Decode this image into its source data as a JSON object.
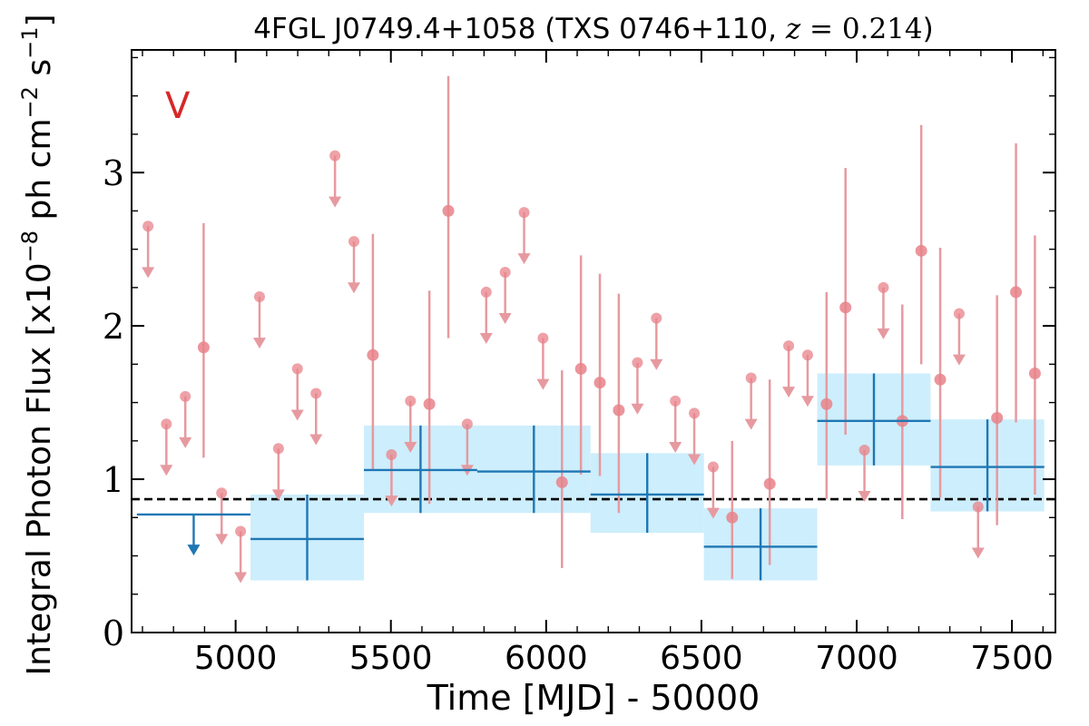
{
  "chart_data": {
    "type": "scatter",
    "title": "4FGL J0749.4+1058 (TXS 0746+110, z = 0.214)",
    "xlabel": "Time [MJD] - 50000",
    "ylabel": "Integral Photon Flux [x10^-8 ph cm^-2 s^-1]",
    "panel_label": "V",
    "xlim": [
      4665,
      7640
    ],
    "ylim": [
      0,
      3.8
    ],
    "x_ticks": [
      5000,
      5500,
      6000,
      6500,
      7000,
      7500
    ],
    "y_ticks": [
      0,
      1,
      2,
      3
    ],
    "mean_flux": 0.87,
    "monthly_upper_limits": [
      {
        "x": 4718,
        "y": 2.65
      },
      {
        "x": 4777,
        "y": 1.36
      },
      {
        "x": 4838,
        "y": 1.54
      },
      {
        "x": 4955,
        "y": 0.91
      },
      {
        "x": 5016,
        "y": 0.66
      },
      {
        "x": 5077,
        "y": 2.19
      },
      {
        "x": 5138,
        "y": 1.2
      },
      {
        "x": 5199,
        "y": 1.72
      },
      {
        "x": 5259,
        "y": 1.56
      },
      {
        "x": 5320,
        "y": 3.11
      },
      {
        "x": 5381,
        "y": 2.55
      },
      {
        "x": 5502,
        "y": 1.16
      },
      {
        "x": 5563,
        "y": 1.51
      },
      {
        "x": 5746,
        "y": 1.36
      },
      {
        "x": 5807,
        "y": 2.22
      },
      {
        "x": 5868,
        "y": 2.35
      },
      {
        "x": 5929,
        "y": 2.74
      },
      {
        "x": 5990,
        "y": 1.92
      },
      {
        "x": 6294,
        "y": 1.76
      },
      {
        "x": 6355,
        "y": 2.05
      },
      {
        "x": 6416,
        "y": 1.51
      },
      {
        "x": 6477,
        "y": 1.43
      },
      {
        "x": 6538,
        "y": 1.08
      },
      {
        "x": 6660,
        "y": 1.66
      },
      {
        "x": 6781,
        "y": 1.87
      },
      {
        "x": 6842,
        "y": 1.81
      },
      {
        "x": 7025,
        "y": 1.19
      },
      {
        "x": 7086,
        "y": 2.25
      },
      {
        "x": 7330,
        "y": 2.08
      },
      {
        "x": 7391,
        "y": 0.82
      }
    ],
    "monthly_detections": [
      {
        "x": 4897,
        "y": 1.86,
        "lo": 1.14,
        "hi": 2.67
      },
      {
        "x": 5442,
        "y": 1.81,
        "lo": 1.06,
        "hi": 2.6
      },
      {
        "x": 5624,
        "y": 1.49,
        "lo": 0.84,
        "hi": 2.23
      },
      {
        "x": 5685,
        "y": 2.75,
        "lo": 1.92,
        "hi": 3.63
      },
      {
        "x": 6051,
        "y": 0.98,
        "lo": 0.42,
        "hi": 1.71
      },
      {
        "x": 6112,
        "y": 1.72,
        "lo": 1.03,
        "hi": 2.46
      },
      {
        "x": 6173,
        "y": 1.63,
        "lo": 1.02,
        "hi": 2.34
      },
      {
        "x": 6234,
        "y": 1.45,
        "lo": 0.78,
        "hi": 2.21
      },
      {
        "x": 6599,
        "y": 0.75,
        "lo": 0.35,
        "hi": 1.25
      },
      {
        "x": 6720,
        "y": 0.97,
        "lo": 0.44,
        "hi": 1.65
      },
      {
        "x": 6903,
        "y": 1.49,
        "lo": 0.87,
        "hi": 2.22
      },
      {
        "x": 6964,
        "y": 2.12,
        "lo": 1.29,
        "hi": 3.03
      },
      {
        "x": 7147,
        "y": 1.38,
        "lo": 0.74,
        "hi": 2.14
      },
      {
        "x": 7208,
        "y": 2.49,
        "lo": 1.75,
        "hi": 3.31
      },
      {
        "x": 7269,
        "y": 1.65,
        "lo": 0.88,
        "hi": 2.51
      },
      {
        "x": 7452,
        "y": 1.4,
        "lo": 0.7,
        "hi": 2.2
      },
      {
        "x": 7513,
        "y": 2.22,
        "lo": 1.37,
        "hi": 3.19
      },
      {
        "x": 7574,
        "y": 1.69,
        "lo": 0.9,
        "hi": 2.59
      }
    ],
    "yearly_upper_limits": [
      {
        "x0": 4682,
        "x1": 5048,
        "y": 0.77
      }
    ],
    "yearly_detections": [
      {
        "x0": 5048,
        "x1": 5413,
        "y": 0.61,
        "lo": 0.34,
        "hi": 0.9
      },
      {
        "x0": 5413,
        "x1": 5778,
        "y": 1.06,
        "lo": 0.78,
        "hi": 1.35
      },
      {
        "x0": 5778,
        "x1": 6143,
        "y": 1.05,
        "lo": 0.78,
        "hi": 1.35
      },
      {
        "x0": 6143,
        "x1": 6508,
        "y": 0.9,
        "lo": 0.65,
        "hi": 1.17
      },
      {
        "x0": 6508,
        "x1": 6873,
        "y": 0.56,
        "lo": 0.34,
        "hi": 0.81
      },
      {
        "x0": 6873,
        "x1": 7238,
        "y": 1.38,
        "lo": 1.09,
        "hi": 1.69
      },
      {
        "x0": 7238,
        "x1": 7604,
        "y": 1.08,
        "lo": 0.79,
        "hi": 1.39
      }
    ],
    "colors": {
      "monthly": "#e8828a",
      "monthly_line": "#e69aa0",
      "yearly": "#1f77b4",
      "yearly_band": "#cdeefc",
      "mean_line": "#000000",
      "panel_label": "#d62728"
    }
  }
}
